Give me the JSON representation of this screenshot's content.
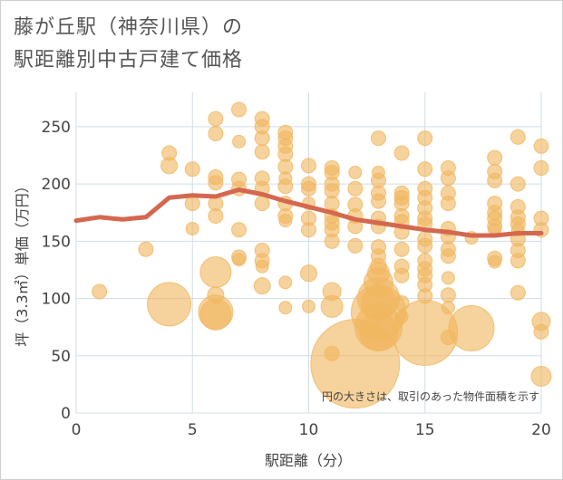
{
  "chart_title": [
    "藤が丘駅（神奈川県）の",
    "駅距離別中古戸建て価格"
  ],
  "chart_data": {
    "type": "scatter",
    "xlabel": "駅距離（分）",
    "ylabel": "坪（3.3㎡）単価（万円）",
    "xlim": [
      0,
      20
    ],
    "ylim": [
      0,
      280
    ],
    "x_ticks": [
      "0",
      "5",
      "10",
      "15",
      "20"
    ],
    "y_ticks": [
      "0",
      "50",
      "100",
      "150",
      "200",
      "250"
    ],
    "note": "円の大きさは、取引のあった物件面積を示す",
    "grid": true,
    "colors": {
      "bubble": "#f0b660",
      "line": "#d4684f",
      "grid": "#d0dde6",
      "plot_bg": "#ffffff"
    },
    "points": [
      {
        "x": 1,
        "y": 106,
        "s": 8
      },
      {
        "x": 3,
        "y": 143,
        "s": 8
      },
      {
        "x": 4,
        "y": 227,
        "s": 8
      },
      {
        "x": 4,
        "y": 216,
        "s": 9
      },
      {
        "x": 4,
        "y": 95,
        "s": 24
      },
      {
        "x": 5,
        "y": 213,
        "s": 8
      },
      {
        "x": 5,
        "y": 183,
        "s": 8
      },
      {
        "x": 5,
        "y": 161,
        "s": 7
      },
      {
        "x": 6,
        "y": 257,
        "s": 8
      },
      {
        "x": 6,
        "y": 244,
        "s": 8
      },
      {
        "x": 6,
        "y": 206,
        "s": 8
      },
      {
        "x": 6,
        "y": 201,
        "s": 8
      },
      {
        "x": 6,
        "y": 183,
        "s": 8
      },
      {
        "x": 6,
        "y": 172,
        "s": 8
      },
      {
        "x": 6,
        "y": 123,
        "s": 17
      },
      {
        "x": 6,
        "y": 103,
        "s": 9
      },
      {
        "x": 6,
        "y": 88,
        "s": 19
      },
      {
        "x": 6,
        "y": 86,
        "s": 17
      },
      {
        "x": 7,
        "y": 265,
        "s": 8
      },
      {
        "x": 7,
        "y": 237,
        "s": 7
      },
      {
        "x": 7,
        "y": 204,
        "s": 8
      },
      {
        "x": 7,
        "y": 196,
        "s": 8
      },
      {
        "x": 7,
        "y": 160,
        "s": 8
      },
      {
        "x": 7,
        "y": 136,
        "s": 8
      },
      {
        "x": 7,
        "y": 134,
        "s": 7
      },
      {
        "x": 8,
        "y": 257,
        "s": 8
      },
      {
        "x": 8,
        "y": 250,
        "s": 8
      },
      {
        "x": 8,
        "y": 240,
        "s": 8
      },
      {
        "x": 8,
        "y": 228,
        "s": 8
      },
      {
        "x": 8,
        "y": 205,
        "s": 8
      },
      {
        "x": 8,
        "y": 196,
        "s": 8
      },
      {
        "x": 8,
        "y": 183,
        "s": 8
      },
      {
        "x": 8,
        "y": 142,
        "s": 8
      },
      {
        "x": 8,
        "y": 133,
        "s": 8
      },
      {
        "x": 8,
        "y": 128,
        "s": 7
      },
      {
        "x": 8,
        "y": 111,
        "s": 9
      },
      {
        "x": 9,
        "y": 245,
        "s": 8
      },
      {
        "x": 9,
        "y": 240,
        "s": 8
      },
      {
        "x": 9,
        "y": 233,
        "s": 8
      },
      {
        "x": 9,
        "y": 226,
        "s": 8
      },
      {
        "x": 9,
        "y": 215,
        "s": 8
      },
      {
        "x": 9,
        "y": 205,
        "s": 7
      },
      {
        "x": 9,
        "y": 198,
        "s": 8
      },
      {
        "x": 9,
        "y": 183,
        "s": 8
      },
      {
        "x": 9,
        "y": 172,
        "s": 8
      },
      {
        "x": 9,
        "y": 168,
        "s": 7
      },
      {
        "x": 9,
        "y": 114,
        "s": 7
      },
      {
        "x": 9,
        "y": 92,
        "s": 7
      },
      {
        "x": 10,
        "y": 216,
        "s": 8
      },
      {
        "x": 10,
        "y": 200,
        "s": 8
      },
      {
        "x": 10,
        "y": 196,
        "s": 8
      },
      {
        "x": 10,
        "y": 183,
        "s": 7
      },
      {
        "x": 10,
        "y": 170,
        "s": 8
      },
      {
        "x": 10,
        "y": 160,
        "s": 8
      },
      {
        "x": 10,
        "y": 122,
        "s": 9
      },
      {
        "x": 10,
        "y": 93,
        "s": 7
      },
      {
        "x": 11,
        "y": 214,
        "s": 8
      },
      {
        "x": 11,
        "y": 210,
        "s": 8
      },
      {
        "x": 11,
        "y": 200,
        "s": 8
      },
      {
        "x": 11,
        "y": 194,
        "s": 8
      },
      {
        "x": 11,
        "y": 183,
        "s": 8
      },
      {
        "x": 11,
        "y": 172,
        "s": 8
      },
      {
        "x": 11,
        "y": 166,
        "s": 8
      },
      {
        "x": 11,
        "y": 160,
        "s": 8
      },
      {
        "x": 11,
        "y": 150,
        "s": 8
      },
      {
        "x": 11,
        "y": 106,
        "s": 10
      },
      {
        "x": 11,
        "y": 93,
        "s": 12
      },
      {
        "x": 11,
        "y": 52,
        "s": 8
      },
      {
        "x": 12,
        "y": 210,
        "s": 7
      },
      {
        "x": 12,
        "y": 196,
        "s": 8
      },
      {
        "x": 12,
        "y": 182,
        "s": 8
      },
      {
        "x": 12,
        "y": 172,
        "s": 8
      },
      {
        "x": 12,
        "y": 163,
        "s": 8
      },
      {
        "x": 12,
        "y": 146,
        "s": 8
      },
      {
        "x": 12,
        "y": 43,
        "s": 49
      },
      {
        "x": 13,
        "y": 240,
        "s": 8
      },
      {
        "x": 13,
        "y": 210,
        "s": 7
      },
      {
        "x": 13,
        "y": 203,
        "s": 8
      },
      {
        "x": 13,
        "y": 192,
        "s": 8
      },
      {
        "x": 13,
        "y": 185,
        "s": 8
      },
      {
        "x": 13,
        "y": 170,
        "s": 8
      },
      {
        "x": 13,
        "y": 163,
        "s": 8
      },
      {
        "x": 13,
        "y": 145,
        "s": 8
      },
      {
        "x": 13,
        "y": 137,
        "s": 8
      },
      {
        "x": 13,
        "y": 128,
        "s": 9
      },
      {
        "x": 13,
        "y": 122,
        "s": 12
      },
      {
        "x": 13,
        "y": 114,
        "s": 16
      },
      {
        "x": 13,
        "y": 100,
        "s": 23
      },
      {
        "x": 13,
        "y": 96,
        "s": 19
      },
      {
        "x": 13,
        "y": 88,
        "s": 30
      },
      {
        "x": 13,
        "y": 75,
        "s": 26
      },
      {
        "x": 13,
        "y": 71,
        "s": 21
      },
      {
        "x": 14,
        "y": 227,
        "s": 8
      },
      {
        "x": 14,
        "y": 192,
        "s": 8
      },
      {
        "x": 14,
        "y": 188,
        "s": 8
      },
      {
        "x": 14,
        "y": 183,
        "s": 8
      },
      {
        "x": 14,
        "y": 172,
        "s": 8
      },
      {
        "x": 14,
        "y": 167,
        "s": 8
      },
      {
        "x": 14,
        "y": 158,
        "s": 8
      },
      {
        "x": 14,
        "y": 143,
        "s": 8
      },
      {
        "x": 14,
        "y": 128,
        "s": 8
      },
      {
        "x": 14,
        "y": 120,
        "s": 8
      },
      {
        "x": 14,
        "y": 96,
        "s": 8
      },
      {
        "x": 14,
        "y": 84,
        "s": 7
      },
      {
        "x": 15,
        "y": 240,
        "s": 8
      },
      {
        "x": 15,
        "y": 213,
        "s": 8
      },
      {
        "x": 15,
        "y": 196,
        "s": 8
      },
      {
        "x": 15,
        "y": 188,
        "s": 8
      },
      {
        "x": 15,
        "y": 179,
        "s": 8
      },
      {
        "x": 15,
        "y": 170,
        "s": 8
      },
      {
        "x": 15,
        "y": 165,
        "s": 8
      },
      {
        "x": 15,
        "y": 152,
        "s": 8
      },
      {
        "x": 15,
        "y": 146,
        "s": 8
      },
      {
        "x": 15,
        "y": 133,
        "s": 8
      },
      {
        "x": 15,
        "y": 126,
        "s": 8
      },
      {
        "x": 15,
        "y": 120,
        "s": 8
      },
      {
        "x": 15,
        "y": 112,
        "s": 8
      },
      {
        "x": 15,
        "y": 102,
        "s": 8
      },
      {
        "x": 15,
        "y": 70,
        "s": 36
      },
      {
        "x": 16,
        "y": 214,
        "s": 8
      },
      {
        "x": 16,
        "y": 205,
        "s": 8
      },
      {
        "x": 16,
        "y": 192,
        "s": 8
      },
      {
        "x": 16,
        "y": 183,
        "s": 8
      },
      {
        "x": 16,
        "y": 161,
        "s": 8
      },
      {
        "x": 16,
        "y": 154,
        "s": 8
      },
      {
        "x": 16,
        "y": 143,
        "s": 8
      },
      {
        "x": 16,
        "y": 137,
        "s": 8
      },
      {
        "x": 16,
        "y": 118,
        "s": 7
      },
      {
        "x": 16,
        "y": 103,
        "s": 8
      },
      {
        "x": 16,
        "y": 92,
        "s": 7
      },
      {
        "x": 16,
        "y": 66,
        "s": 8
      },
      {
        "x": 17,
        "y": 153,
        "s": 7
      },
      {
        "x": 17,
        "y": 74,
        "s": 25
      },
      {
        "x": 18,
        "y": 223,
        "s": 8
      },
      {
        "x": 18,
        "y": 211,
        "s": 8
      },
      {
        "x": 18,
        "y": 203,
        "s": 8
      },
      {
        "x": 18,
        "y": 183,
        "s": 8
      },
      {
        "x": 18,
        "y": 175,
        "s": 8
      },
      {
        "x": 18,
        "y": 170,
        "s": 8
      },
      {
        "x": 18,
        "y": 163,
        "s": 8
      },
      {
        "x": 18,
        "y": 160,
        "s": 7
      },
      {
        "x": 18,
        "y": 135,
        "s": 8
      },
      {
        "x": 18,
        "y": 132,
        "s": 7
      },
      {
        "x": 19,
        "y": 241,
        "s": 8
      },
      {
        "x": 19,
        "y": 200,
        "s": 8
      },
      {
        "x": 19,
        "y": 180,
        "s": 8
      },
      {
        "x": 19,
        "y": 171,
        "s": 8
      },
      {
        "x": 19,
        "y": 165,
        "s": 8
      },
      {
        "x": 19,
        "y": 160,
        "s": 7
      },
      {
        "x": 19,
        "y": 152,
        "s": 8
      },
      {
        "x": 19,
        "y": 142,
        "s": 8
      },
      {
        "x": 19,
        "y": 133,
        "s": 8
      },
      {
        "x": 19,
        "y": 105,
        "s": 8
      },
      {
        "x": 20,
        "y": 233,
        "s": 8
      },
      {
        "x": 20,
        "y": 214,
        "s": 8
      },
      {
        "x": 20,
        "y": 170,
        "s": 8
      },
      {
        "x": 20,
        "y": 160,
        "s": 8
      },
      {
        "x": 20,
        "y": 80,
        "s": 10
      },
      {
        "x": 20,
        "y": 71,
        "s": 8
      },
      {
        "x": 20,
        "y": 32,
        "s": 11
      }
    ],
    "trend": {
      "x": [
        0,
        1,
        2,
        3,
        4,
        5,
        6,
        7,
        8,
        9,
        10,
        11,
        12,
        13,
        14,
        15,
        16,
        17,
        18,
        19,
        20
      ],
      "y": [
        168,
        171,
        169,
        171,
        188,
        190,
        189,
        195,
        191,
        185,
        180,
        175,
        169,
        166,
        163,
        160,
        158,
        155,
        155,
        157,
        157
      ]
    }
  }
}
